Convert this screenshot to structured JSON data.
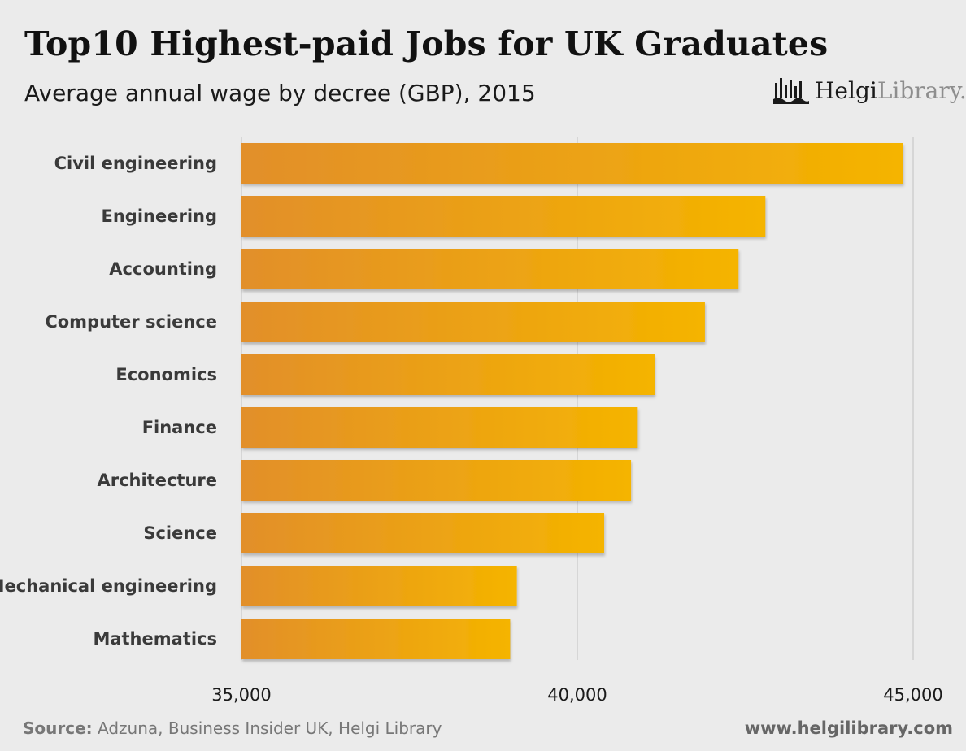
{
  "title": "Top10 Highest-paid Jobs for UK Graduates",
  "subtitle": "Average annual wage by decree (GBP), 2015",
  "logo": {
    "helgi": "Helgi",
    "library": "Library."
  },
  "footer": {
    "source_label": "Source:",
    "source_text": " Adzuna, Business Insider UK, Helgi Library",
    "url": "www.helgilibrary.com"
  },
  "colors": {
    "bar_start": "#e28f2a",
    "bar_end": "#f5b400",
    "grid": "#cfcfcf",
    "background": "#ebebeb"
  },
  "chart_data": {
    "type": "bar",
    "orientation": "horizontal",
    "categories": [
      "Civil engineering",
      "Engineering",
      "Accounting",
      "Computer science",
      "Economics",
      "Finance",
      "Architecture",
      "Science",
      "Mechanical engineering",
      "Mathematics"
    ],
    "values": [
      44850,
      42800,
      42400,
      41900,
      41150,
      40900,
      40800,
      40400,
      39100,
      39000
    ],
    "xlim": [
      35000,
      45000
    ],
    "xticks": [
      35000,
      40000,
      45000
    ],
    "xtick_labels": [
      "35,000",
      "40,000",
      "45,000"
    ],
    "grid": true
  }
}
